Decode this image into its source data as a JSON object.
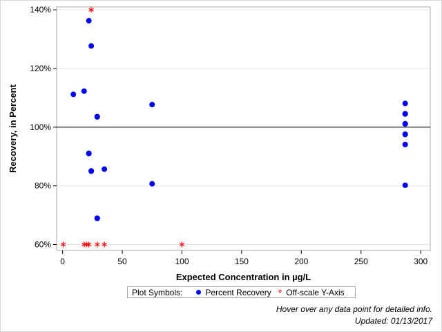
{
  "chart_data": {
    "type": "scatter",
    "xlabel": "Expected Concentration in µg/L",
    "ylabel": "Recovery, in Percent",
    "xlim": [
      -5,
      308
    ],
    "ylim": [
      58,
      141
    ],
    "xticks": [
      0,
      50,
      100,
      150,
      200,
      250,
      300
    ],
    "yticks": [
      60,
      80,
      100,
      120,
      140
    ],
    "ytick_labels": [
      "60%",
      "80%",
      "100%",
      "120%",
      "140%"
    ],
    "reference_line_y": 100,
    "grid": "horizontal",
    "series": [
      {
        "name": "Percent Recovery",
        "marker": "circle",
        "color": "#0000ff",
        "points": [
          [
            22,
            136.3
          ],
          [
            24,
            127.7
          ],
          [
            9,
            111.2
          ],
          [
            18,
            112.3
          ],
          [
            29,
            103.5
          ],
          [
            29,
            103.6
          ],
          [
            75,
            107.7
          ],
          [
            22,
            91.0
          ],
          [
            22,
            91.1
          ],
          [
            24,
            85.1
          ],
          [
            24,
            85.0
          ],
          [
            35,
            85.7
          ],
          [
            75,
            80.7
          ],
          [
            29,
            68.9
          ],
          [
            29,
            69.0
          ],
          [
            287,
            108.1
          ],
          [
            287,
            104.5
          ],
          [
            287,
            104.6
          ],
          [
            287,
            101.1
          ],
          [
            287,
            101.2
          ],
          [
            287,
            97.5
          ],
          [
            287,
            97.6
          ],
          [
            287,
            94.1
          ],
          [
            287,
            80.2
          ]
        ]
      },
      {
        "name": "Off-scale Y-Axis",
        "marker": "asterisk",
        "color": "#ff0000",
        "points": [
          [
            24,
            140
          ],
          [
            0.5,
            60
          ],
          [
            18,
            60
          ],
          [
            20,
            60
          ],
          [
            22,
            60
          ],
          [
            29,
            60
          ],
          [
            35,
            60
          ],
          [
            100,
            60
          ]
        ]
      }
    ]
  },
  "legend": {
    "title": "Plot Symbols:",
    "items": [
      "Percent Recovery",
      "Off-scale Y-Axis"
    ]
  },
  "footer": {
    "hover_note": "Hover over any data point for detailed info.",
    "updated": "Updated: 01/13/2017"
  },
  "colors": {
    "frame": "#d6d6d6",
    "axis": "#a8a8a8",
    "grid": "#e6e6e6",
    "reference": "#000000"
  }
}
